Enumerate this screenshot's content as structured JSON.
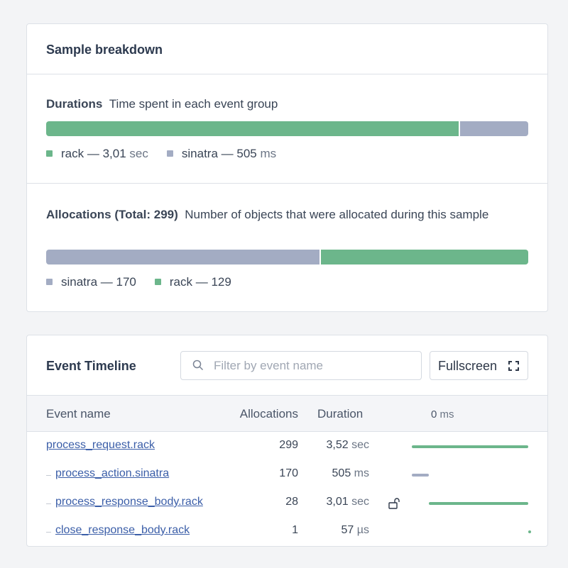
{
  "breakdown": {
    "title": "Sample breakdown",
    "separator": "—",
    "durations": {
      "title": "Durations",
      "description": "Time spent in each event group",
      "items": [
        {
          "name": "rack",
          "value": "3,01",
          "unit": "sec"
        },
        {
          "name": "sinatra",
          "value": "505",
          "unit": "ms"
        }
      ]
    },
    "allocations": {
      "title": "Allocations (Total: 299)",
      "description": "Number of objects that were allocated during this sample",
      "items": [
        {
          "name": "sinatra",
          "value": 170
        },
        {
          "name": "rack",
          "value": 129
        }
      ]
    }
  },
  "timeline": {
    "title": "Event Timeline",
    "search_placeholder": "Filter by event name",
    "button": "Fullscreen",
    "columns": [
      "Event name",
      "Allocations",
      "Duration"
    ],
    "axis_start": {
      "value": "0",
      "unit": "ms"
    },
    "rows": [
      {
        "name": "process_request.rack",
        "allocations": 299,
        "duration": "3,52",
        "unit": "sec"
      },
      {
        "name": "process_action.sinatra",
        "allocations": 170,
        "duration": "505",
        "unit": "ms"
      },
      {
        "name": "process_response_body.rack",
        "allocations": 28,
        "duration": "3,01",
        "unit": "sec"
      },
      {
        "name": "close_response_body.rack",
        "allocations": 1,
        "duration": "57",
        "unit": "µs"
      }
    ]
  }
}
